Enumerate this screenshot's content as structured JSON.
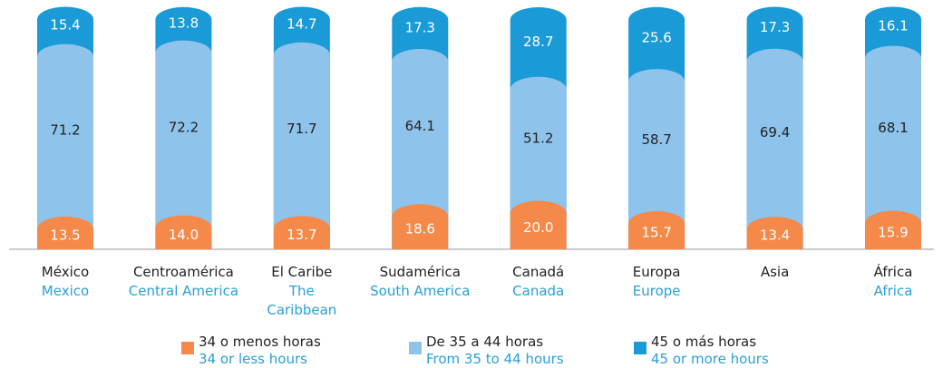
{
  "chart_data": {
    "type": "bar",
    "stacked": true,
    "categories": [
      "México",
      "Centroamérica",
      "El Caribe",
      "Sudamérica",
      "Canadá",
      "Europa",
      "Asia",
      "África"
    ],
    "categories_en": [
      "Mexico",
      "Central America",
      "The Caribbean",
      "South America",
      "Canada",
      "Europe",
      null,
      "Africa"
    ],
    "series": [
      {
        "name": "34 o menos horas",
        "name_en": "34 or less hours",
        "color": "#f4894a",
        "label_color": "#ffffff",
        "values": [
          13.5,
          14.0,
          13.7,
          18.6,
          20.0,
          15.7,
          13.4,
          15.9
        ],
        "value_labels": [
          "13.5",
          "14.0",
          "13.7",
          "18.6",
          "20.0",
          "15.7",
          "13.4",
          "15.9"
        ]
      },
      {
        "name": "De 35 a 44 horas",
        "name_en": "From 35 to 44 hours",
        "color": "#8ec3eb",
        "label_color": "#222222",
        "values": [
          71.2,
          72.2,
          71.7,
          64.1,
          51.2,
          58.7,
          69.4,
          68.1
        ]
      },
      {
        "name": "45 o más horas",
        "name_en": "45 or more hours",
        "color": "#1a9ad6",
        "label_color": "#ffffff",
        "values": [
          15.4,
          13.8,
          14.7,
          17.3,
          28.7,
          25.6,
          17.3,
          16.1
        ]
      }
    ]
  }
}
